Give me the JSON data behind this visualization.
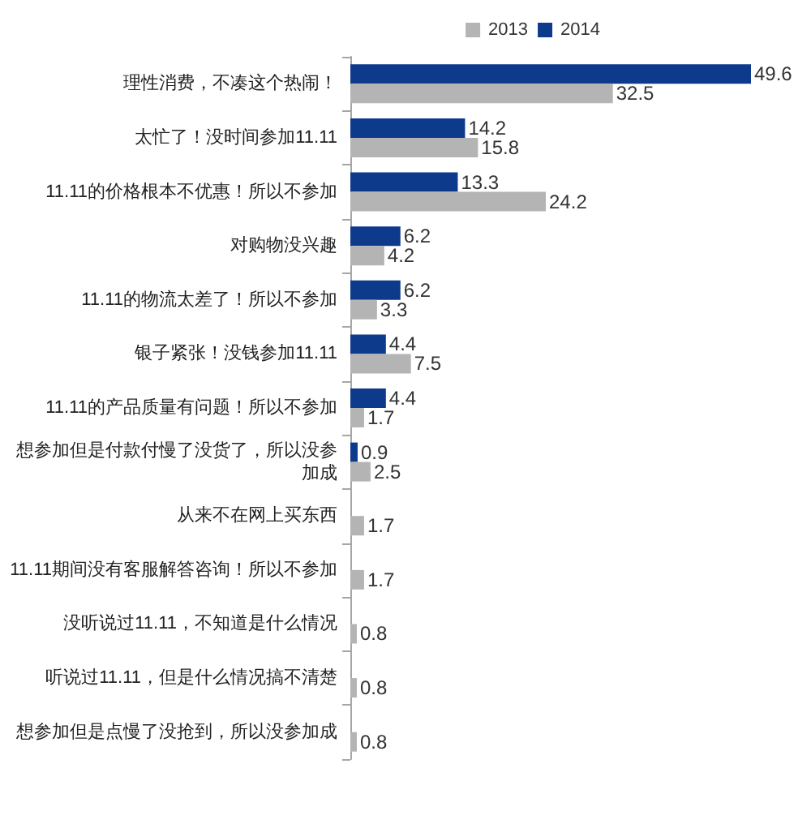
{
  "chart_data": {
    "type": "bar",
    "orientation": "horizontal",
    "categories": [
      "理性消费，不凑这个热闹！",
      "太忙了！没时间参加11.11",
      "11.11的价格根本不优惠！所以不参加",
      "对购物没兴趣",
      "11.11的物流太差了！所以不参加",
      "银子紧张！没钱参加11.11",
      "11.11的产品质量有问题！所以不参加",
      "想参加但是付款付慢了没货了，所以没参加成",
      "从来不在网上买东西",
      "11.11期间没有客服解答咨询！所以不参加",
      "没听说过11.11，不知道是什么情况",
      "听说过11.11，但是什么情况搞不清楚",
      "想参加但是点慢了没抢到，所以没参加成"
    ],
    "series": [
      {
        "name": "2013",
        "color": "#b4b4b4",
        "values": [
          32.5,
          15.8,
          24.2,
          4.2,
          3.3,
          7.5,
          1.7,
          2.5,
          1.7,
          1.7,
          0.8,
          0.8,
          0.8
        ]
      },
      {
        "name": "2014",
        "color": "#0e3a8c",
        "values": [
          49.6,
          14.2,
          13.3,
          6.2,
          6.2,
          4.4,
          4.4,
          0.9,
          null,
          null,
          null,
          null,
          null
        ]
      }
    ],
    "data_labels": true,
    "legend": "top",
    "tick_labels": "y"
  }
}
